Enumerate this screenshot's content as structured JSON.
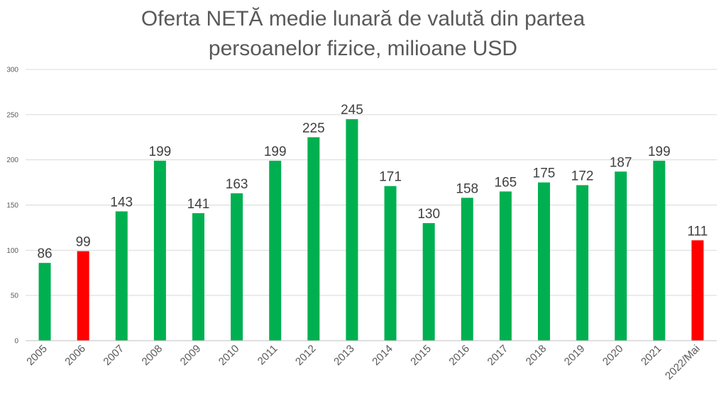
{
  "chart_data": {
    "type": "bar",
    "title_lines": [
      "Oferta NETĂ medie lunară de valută din partea",
      "persoanelor fizice, milioane USD"
    ],
    "categories": [
      "2005",
      "2006",
      "2007",
      "2008",
      "2009",
      "2010",
      "2011",
      "2012",
      "2013",
      "2014",
      "2015",
      "2016",
      "2017",
      "2018",
      "2019",
      "2020",
      "2021",
      "2022/Mai"
    ],
    "values": [
      86,
      99,
      143,
      199,
      141,
      163,
      199,
      225,
      245,
      171,
      130,
      158,
      165,
      175,
      172,
      187,
      199,
      111
    ],
    "data_labels": [
      "86",
      "99",
      "143",
      "199",
      "141",
      "163",
      "199",
      "225",
      "245",
      "171",
      "130",
      "158",
      "165",
      "175",
      "172",
      "187",
      "199",
      "111"
    ],
    "highlighted": [
      "2006",
      "2022/Mai"
    ],
    "colors": {
      "default": "#00b050",
      "highlight": "#ff0000",
      "grid": "#d9d9d9",
      "axis": "#bfbfbf"
    },
    "ylim": [
      0,
      300
    ],
    "yticks": [
      0,
      50,
      100,
      150,
      200,
      250,
      300
    ],
    "xlabel": "",
    "ylabel": "",
    "grid": true,
    "legend": "none"
  }
}
